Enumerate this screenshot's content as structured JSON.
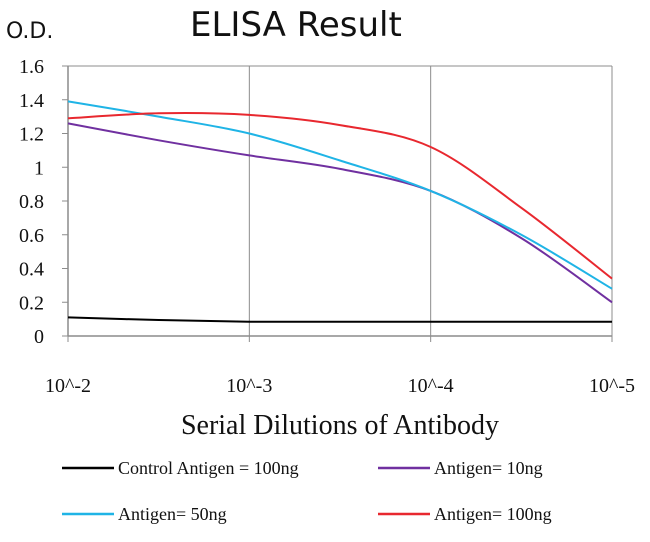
{
  "chart_data": {
    "type": "line",
    "title": "ELISA Result",
    "ylabel": "O.D.",
    "xlabel": "Serial Dilutions of Antibody",
    "categories": [
      "10^-2",
      "10^-3",
      "10^-4",
      "10^-5"
    ],
    "ylim": [
      0,
      1.6
    ],
    "yticks": [
      0,
      0.2,
      0.4,
      0.6,
      0.8,
      1,
      1.2,
      1.4,
      1.6
    ],
    "ytick_labels": [
      "0",
      "0.2",
      "0.4",
      "0.6",
      "0.8",
      "1",
      "1.2",
      "1.4",
      "1.6"
    ],
    "grid": "vertical",
    "legend_position": "bottom",
    "series": [
      {
        "name": "Control Antigen = 100ng",
        "color": "#000000",
        "points": [
          [
            0,
            0.11
          ],
          [
            0.5,
            0.095
          ],
          [
            1,
            0.085
          ],
          [
            1.5,
            0.085
          ],
          [
            2,
            0.085
          ],
          [
            2.5,
            0.085
          ],
          [
            3,
            0.085
          ]
        ]
      },
      {
        "name": "Antigen= 10ng",
        "color": "#7030a0",
        "points": [
          [
            0,
            1.26
          ],
          [
            0.5,
            1.16
          ],
          [
            1,
            1.07
          ],
          [
            1.5,
            0.99
          ],
          [
            2,
            0.86
          ],
          [
            2.5,
            0.58
          ],
          [
            3,
            0.2
          ]
        ]
      },
      {
        "name": "Antigen= 50ng",
        "color": "#1fb4e6",
        "points": [
          [
            0,
            1.39
          ],
          [
            0.5,
            1.3
          ],
          [
            1,
            1.2
          ],
          [
            1.5,
            1.04
          ],
          [
            2,
            0.86
          ],
          [
            2.5,
            0.6
          ],
          [
            3,
            0.28
          ]
        ]
      },
      {
        "name": "Antigen= 100ng",
        "color": "#e8282f",
        "points": [
          [
            0,
            1.29
          ],
          [
            0.5,
            1.32
          ],
          [
            1,
            1.31
          ],
          [
            1.5,
            1.25
          ],
          [
            2,
            1.12
          ],
          [
            2.5,
            0.76
          ],
          [
            3,
            0.34
          ]
        ]
      }
    ]
  }
}
